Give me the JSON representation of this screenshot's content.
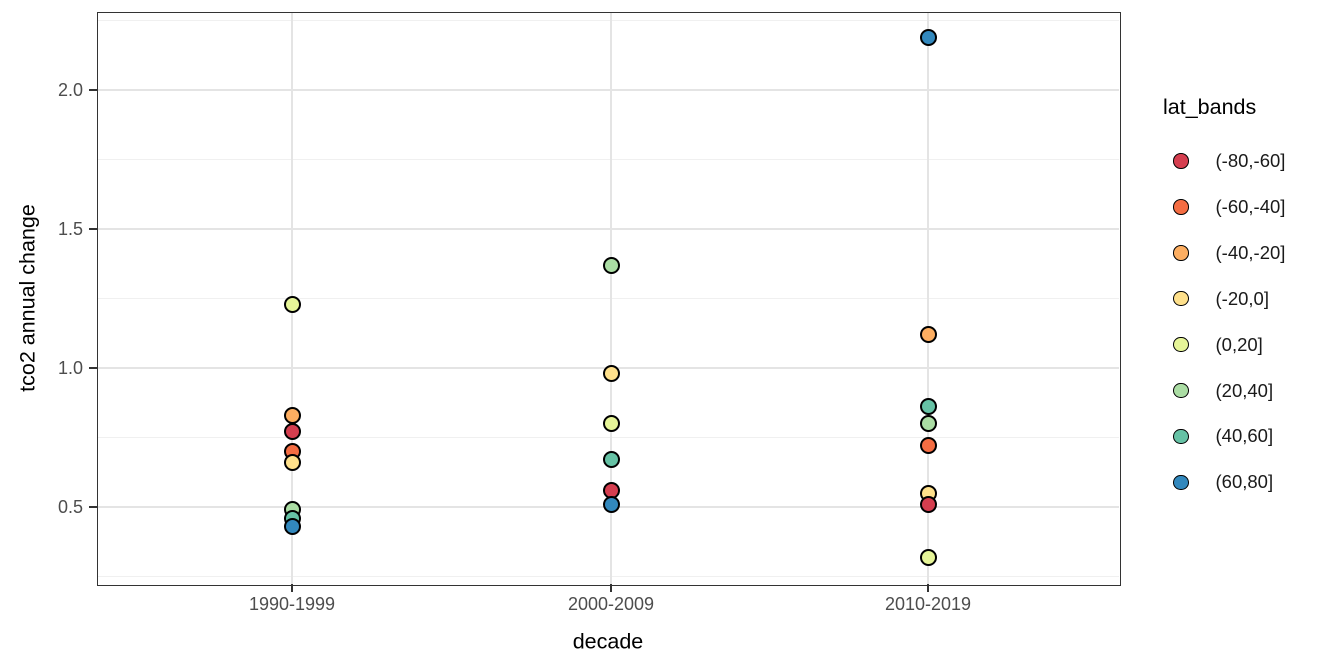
{
  "chart_data": {
    "type": "scatter",
    "title": "",
    "xlabel": "decade",
    "ylabel": "tco2 annual change",
    "legend_title": "lat_bands",
    "categories": [
      "1990-1999",
      "2000-2009",
      "2010-2019"
    ],
    "y_ticks": [
      0.5,
      1.0,
      1.5,
      2.0
    ],
    "y_tick_labels": [
      "0.5",
      "1.0",
      "1.5",
      "2.0"
    ],
    "y_minor_gridlines": [
      0.25,
      0.75,
      1.25,
      1.75,
      2.25
    ],
    "ylim": [
      0.22,
      2.28
    ],
    "grid": "on",
    "legend_position": "right",
    "point_outline_color": "#000000",
    "series": [
      {
        "name": "(-80,-60]",
        "color": "#D53E4F",
        "values": [
          0.77,
          0.56,
          0.51
        ]
      },
      {
        "name": "(-60,-40]",
        "color": "#F46D43",
        "values": [
          0.7,
          null,
          0.72
        ]
      },
      {
        "name": "(-40,-20]",
        "color": "#FDAE61",
        "values": [
          0.83,
          null,
          1.12
        ]
      },
      {
        "name": "(-20,0]",
        "color": "#FEE08B",
        "values": [
          0.66,
          0.98,
          0.55
        ]
      },
      {
        "name": "(0,20]",
        "color": "#E6F598",
        "values": [
          1.23,
          0.8,
          0.32
        ]
      },
      {
        "name": "(20,40]",
        "color": "#ABDDA4",
        "values": [
          0.49,
          1.37,
          0.8
        ]
      },
      {
        "name": "(40,60]",
        "color": "#66C2A5",
        "values": [
          0.46,
          0.67,
          0.86
        ]
      },
      {
        "name": "(60,80]",
        "color": "#3288BD",
        "values": [
          0.43,
          0.51,
          2.19
        ]
      }
    ]
  }
}
